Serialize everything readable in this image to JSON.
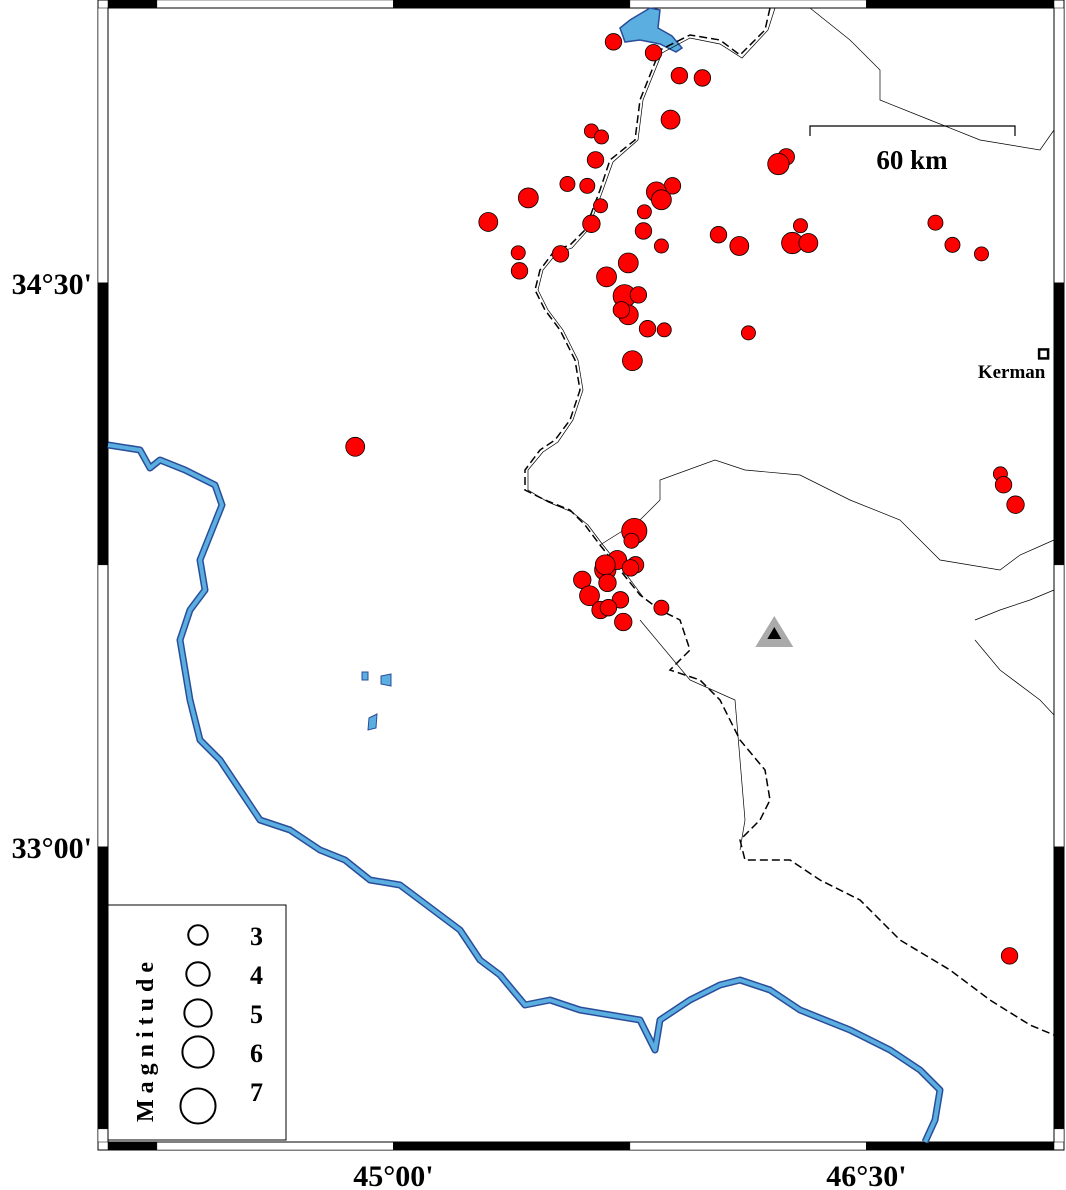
{
  "map": {
    "lon_range": [
      44.095,
      47.095
    ],
    "lat_range": [
      32.215,
      35.231
    ],
    "frame_interval_minutes": 45,
    "x_ticks": [
      {
        "value": 45.0,
        "label": "45°00'"
      },
      {
        "value": 46.5,
        "label": "46°30'"
      }
    ],
    "y_ticks": [
      {
        "value": 34.5,
        "label": "34°30'"
      },
      {
        "value": 33.0,
        "label": "33°00'"
      }
    ],
    "colors": {
      "event_fill": "#ff0000",
      "river": "#5aaee0",
      "river_edge": "#2a4d9a",
      "station": "#000000",
      "station_halo": "#aaaaaa"
    },
    "scale_bar": {
      "label": "60 km"
    },
    "city": {
      "name": "Kerman",
      "lon": 47.062,
      "lat": 34.311,
      "icon": "square-city-icon"
    },
    "station": {
      "lon": 46.208,
      "lat": 33.566,
      "icon": "triangle-station-icon"
    },
    "events": [
      [
        45.698,
        35.141,
        2.9
      ],
      [
        45.825,
        35.112,
        2.9
      ],
      [
        45.907,
        35.051,
        2.9
      ],
      [
        45.98,
        35.045,
        2.9
      ],
      [
        45.879,
        34.934,
        3.4
      ],
      [
        45.628,
        34.904,
        2.4
      ],
      [
        45.66,
        34.888,
        2.4
      ],
      [
        45.641,
        34.827,
        2.9
      ],
      [
        46.246,
        34.835,
        2.9
      ],
      [
        46.221,
        34.816,
        3.9
      ],
      [
        45.552,
        34.763,
        2.6
      ],
      [
        45.615,
        34.758,
        2.6
      ],
      [
        45.428,
        34.726,
        3.6
      ],
      [
        45.885,
        34.758,
        2.9
      ],
      [
        45.834,
        34.742,
        3.6
      ],
      [
        45.85,
        34.721,
        3.6
      ],
      [
        45.657,
        34.705,
        2.4
      ],
      [
        45.796,
        34.689,
        2.4
      ],
      [
        45.301,
        34.662,
        3.4
      ],
      [
        45.628,
        34.657,
        3.1
      ],
      [
        45.793,
        34.638,
        2.9
      ],
      [
        46.031,
        34.628,
        2.9
      ],
      [
        46.097,
        34.598,
        3.4
      ],
      [
        45.85,
        34.598,
        2.4
      ],
      [
        46.291,
        34.652,
        2.4
      ],
      [
        46.265,
        34.606,
        3.9
      ],
      [
        46.316,
        34.606,
        3.4
      ],
      [
        46.719,
        34.66,
        2.6
      ],
      [
        46.773,
        34.601,
        2.6
      ],
      [
        46.865,
        34.577,
        2.4
      ],
      [
        45.396,
        34.58,
        2.4
      ],
      [
        45.53,
        34.577,
        2.9
      ],
      [
        45.4,
        34.532,
        2.9
      ],
      [
        45.745,
        34.553,
        3.6
      ],
      [
        45.676,
        34.516,
        3.6
      ],
      [
        45.733,
        34.465,
        4.2
      ],
      [
        45.777,
        34.468,
        2.9
      ],
      [
        45.745,
        34.415,
        3.6
      ],
      [
        45.723,
        34.428,
        2.9
      ],
      [
        45.806,
        34.378,
        2.9
      ],
      [
        45.859,
        34.375,
        2.4
      ],
      [
        46.126,
        34.367,
        2.4
      ],
      [
        45.758,
        34.293,
        3.6
      ],
      [
        44.879,
        34.064,
        3.4
      ],
      [
        46.925,
        33.992,
        2.4
      ],
      [
        46.935,
        33.963,
        2.9
      ],
      [
        46.973,
        33.91,
        3.1
      ],
      [
        45.764,
        33.84,
        4.7
      ],
      [
        45.755,
        33.814,
        2.6
      ],
      [
        45.672,
        33.737,
        3.9
      ],
      [
        45.71,
        33.763,
        3.4
      ],
      [
        45.672,
        33.75,
        3.6
      ],
      [
        45.768,
        33.75,
        2.9
      ],
      [
        45.752,
        33.742,
        2.9
      ],
      [
        45.599,
        33.71,
        3.1
      ],
      [
        45.679,
        33.702,
        3.1
      ],
      [
        45.622,
        33.668,
        3.6
      ],
      [
        45.657,
        33.63,
        3.1
      ],
      [
        45.72,
        33.657,
        2.9
      ],
      [
        45.682,
        33.636,
        2.9
      ],
      [
        45.729,
        33.598,
        3.1
      ],
      [
        45.85,
        33.636,
        2.6
      ],
      [
        46.954,
        32.71,
        2.9
      ]
    ]
  },
  "legend": {
    "title": "Magnitude",
    "entries": [
      {
        "mag": 3,
        "label": "3"
      },
      {
        "mag": 4,
        "label": "4"
      },
      {
        "mag": 5,
        "label": "5"
      },
      {
        "mag": 6,
        "label": "6"
      },
      {
        "mag": 7,
        "label": "7"
      }
    ]
  }
}
